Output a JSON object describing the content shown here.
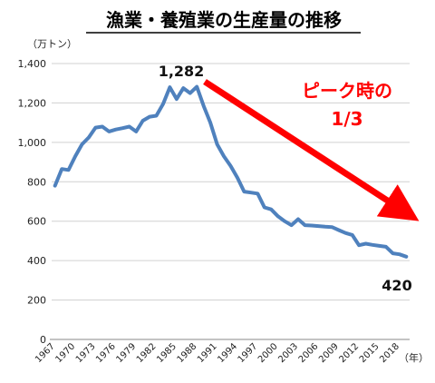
{
  "chart_data": {
    "type": "line",
    "title": "漁業・養殖業の生産量の推移",
    "y_unit_label": "（万トン）",
    "x_unit_label": "（年）",
    "ylim": [
      0,
      1400
    ],
    "yticks": [
      "0",
      "200",
      "400",
      "600",
      "800",
      "1,000",
      "1,200",
      "1,400"
    ],
    "ytick_values": [
      0,
      200,
      400,
      600,
      800,
      1000,
      1200,
      1400
    ],
    "xtick_labels": [
      "1967",
      "1970",
      "1973",
      "1976",
      "1979",
      "1982",
      "1985",
      "1988",
      "1991",
      "1994",
      "1997",
      "2000",
      "2003",
      "2006",
      "2009",
      "2012",
      "2015",
      "2018"
    ],
    "grid": true,
    "series": [
      {
        "color": "#4f81bd",
        "x": [
          1967,
          1968,
          1969,
          1970,
          1971,
          1972,
          1973,
          1974,
          1975,
          1976,
          1977,
          1978,
          1979,
          1980,
          1981,
          1982,
          1983,
          1984,
          1985,
          1986,
          1987,
          1988,
          1989,
          1990,
          1991,
          1992,
          1993,
          1994,
          1995,
          1996,
          1997,
          1998,
          1999,
          2000,
          2001,
          2002,
          2003,
          2004,
          2005,
          2006,
          2007,
          2008,
          2009,
          2010,
          2011,
          2012,
          2013,
          2014,
          2015,
          2016,
          2017,
          2018,
          2019
        ],
        "values": [
          780,
          865,
          860,
          930,
          990,
          1025,
          1075,
          1080,
          1055,
          1065,
          1072,
          1080,
          1055,
          1110,
          1130,
          1135,
          1195,
          1280,
          1220,
          1275,
          1250,
          1282,
          1185,
          1100,
          990,
          930,
          880,
          820,
          750,
          745,
          740,
          670,
          660,
          625,
          600,
          580,
          610,
          580,
          578,
          575,
          572,
          570,
          555,
          540,
          530,
          478,
          486,
          480,
          475,
          470,
          437,
          432,
          420
        ]
      }
    ],
    "annotations": {
      "peak_value_label": "1,282",
      "last_value_label": "420",
      "trend_text_line1": "ピーク時の",
      "trend_text_line2": "1/3",
      "trend_color": "#ff0000"
    }
  }
}
